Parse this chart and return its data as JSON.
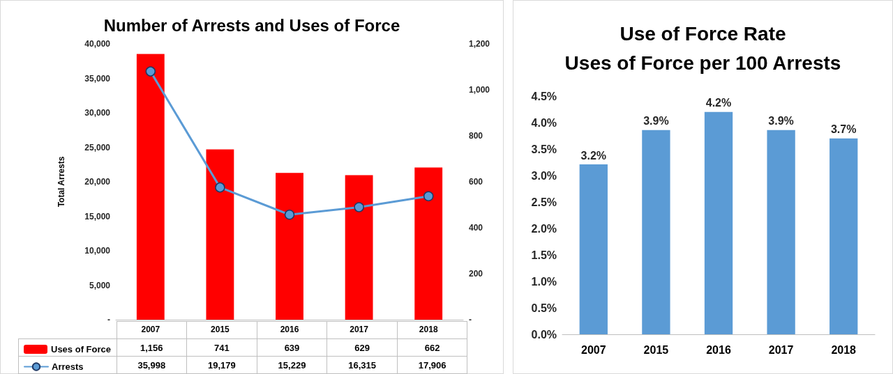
{
  "chart_data": [
    {
      "type": "bar",
      "title": "Number of Arrests and Uses of Force",
      "ylabel": "Total Arrests",
      "categories": [
        "2007",
        "2015",
        "2016",
        "2017",
        "2018"
      ],
      "series": [
        {
          "name": "Uses of Force",
          "type": "bar",
          "axis": "y2",
          "color": "#ff0000",
          "values": [
            1156,
            741,
            639,
            629,
            662
          ],
          "value_labels": [
            "1,156",
            "741",
            "639",
            "629",
            "662"
          ]
        },
        {
          "name": "Arrests",
          "type": "line",
          "color": "#5b9bd5",
          "values": [
            35998,
            19179,
            15229,
            16315,
            17906
          ],
          "value_labels": [
            "35,998",
            "19,179",
            "15,229",
            "16,315",
            "17,906"
          ]
        }
      ],
      "ylim": [
        0,
        40000
      ],
      "yticks": [
        {
          "value": 0,
          "label": "-"
        },
        {
          "value": 5000,
          "label": "5,000"
        },
        {
          "value": 10000,
          "label": "10,000"
        },
        {
          "value": 15000,
          "label": "15,000"
        },
        {
          "value": 20000,
          "label": "20,000"
        },
        {
          "value": 25000,
          "label": "25,000"
        },
        {
          "value": 30000,
          "label": "30,000"
        },
        {
          "value": 35000,
          "label": "35,000"
        },
        {
          "value": 40000,
          "label": "40,000"
        }
      ],
      "y2lim": [
        0,
        1200
      ],
      "y2ticks": [
        {
          "value": 0,
          "label": "-"
        },
        200,
        400,
        600,
        800,
        {
          "value": 1000,
          "label": "1,000"
        },
        {
          "value": 1200,
          "label": "1,200"
        }
      ],
      "legend": "bottom left",
      "marker": "circle"
    },
    {
      "type": "bar",
      "title": "Use of Force Rate",
      "subtitle": "Uses of Force per 100 Arrests",
      "categories": [
        "2007",
        "2015",
        "2016",
        "2017",
        "2018"
      ],
      "values": [
        3.21,
        3.86,
        4.2,
        3.86,
        3.7
      ],
      "color": "#5b9bd5",
      "value_labels": [
        "3.2%",
        "3.9%",
        "4.2%",
        "3.9%",
        "3.7%"
      ],
      "ylim": [
        0,
        4.5
      ],
      "yticks": [
        {
          "value": 0,
          "label": "0.0%"
        },
        {
          "value": 0.5,
          "label": "0.5%"
        },
        {
          "value": 1,
          "label": "1.0%"
        },
        {
          "value": 1.5,
          "label": "1.5%"
        },
        {
          "value": 2,
          "label": "2.0%"
        },
        {
          "value": 2.5,
          "label": "2.5%"
        },
        {
          "value": 3,
          "label": "3.0%"
        },
        {
          "value": 3.5,
          "label": "3.5%"
        },
        {
          "value": 4,
          "label": "4.0%"
        },
        {
          "value": 4.5,
          "label": "4.5%"
        }
      ]
    }
  ]
}
